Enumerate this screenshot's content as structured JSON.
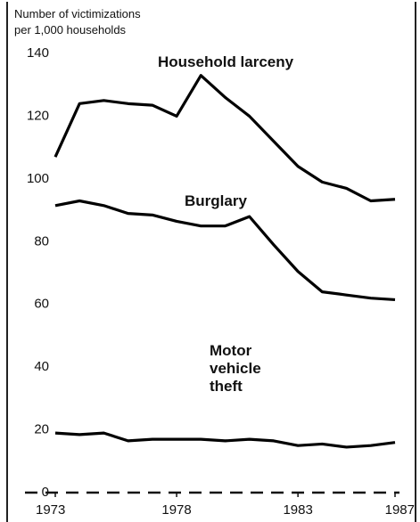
{
  "chart_data": {
    "type": "line",
    "y_label": [
      "Number of victimizations",
      "per 1,000 households"
    ],
    "x": [
      1973,
      1974,
      1975,
      1976,
      1977,
      1978,
      1979,
      1980,
      1981,
      1982,
      1983,
      1984,
      1985,
      1986,
      1987
    ],
    "xlim": [
      1973,
      1987
    ],
    "xticks": [
      1973,
      1978,
      1983,
      1987
    ],
    "ylim": [
      0,
      140
    ],
    "yticks": [
      0,
      20,
      40,
      60,
      80,
      100,
      120,
      140
    ],
    "grid": false,
    "series": [
      {
        "name": "Household larceny",
        "color": "#000000",
        "values": [
          107,
          124,
          125,
          124,
          123.5,
          120,
          133,
          126,
          120,
          112,
          104,
          99,
          97,
          93,
          93.5
        ]
      },
      {
        "name": "Burglary",
        "color": "#000000",
        "values": [
          91.5,
          93,
          91.5,
          89,
          88.5,
          86.5,
          85,
          85,
          88,
          79,
          70.5,
          64,
          63,
          62,
          61.5
        ]
      },
      {
        "name": "Motor vehicle theft",
        "color": "#000000",
        "values": [
          19,
          18.5,
          19,
          16.5,
          17,
          17,
          17,
          16.5,
          17,
          16.5,
          15,
          15.5,
          14.5,
          15,
          16
        ]
      }
    ]
  }
}
